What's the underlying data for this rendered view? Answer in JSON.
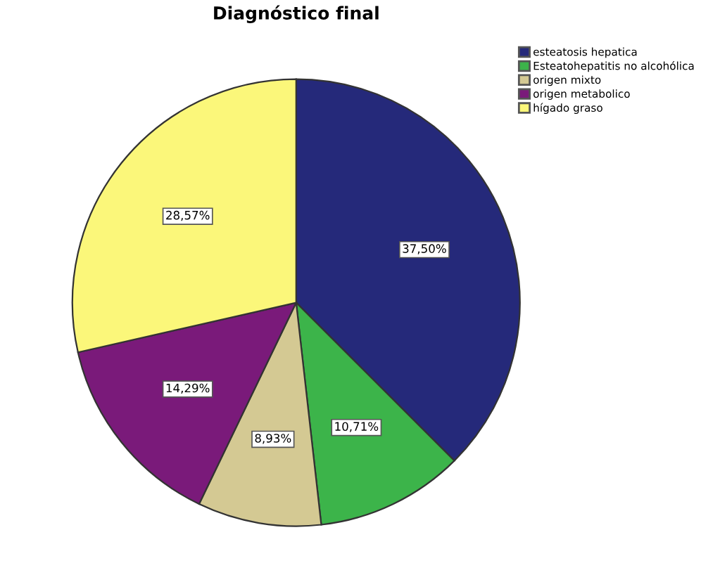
{
  "chart_data": {
    "type": "pie",
    "title": "Diagnóstico final",
    "categories": [
      "esteatosis hepatica",
      "Esteatohepatitis no alcohólica",
      "origen mixto",
      "origen metabolico",
      "hígado graso"
    ],
    "values": [
      37.5,
      10.71,
      8.93,
      14.29,
      28.57
    ],
    "value_labels": [
      "37,50%",
      "10,71%",
      "8,93%",
      "14,29%",
      "28,57%"
    ],
    "colors": [
      "#25297a",
      "#3cb44a",
      "#d4c993",
      "#7a1a7a",
      "#fbf77a"
    ],
    "legend": "top right"
  }
}
